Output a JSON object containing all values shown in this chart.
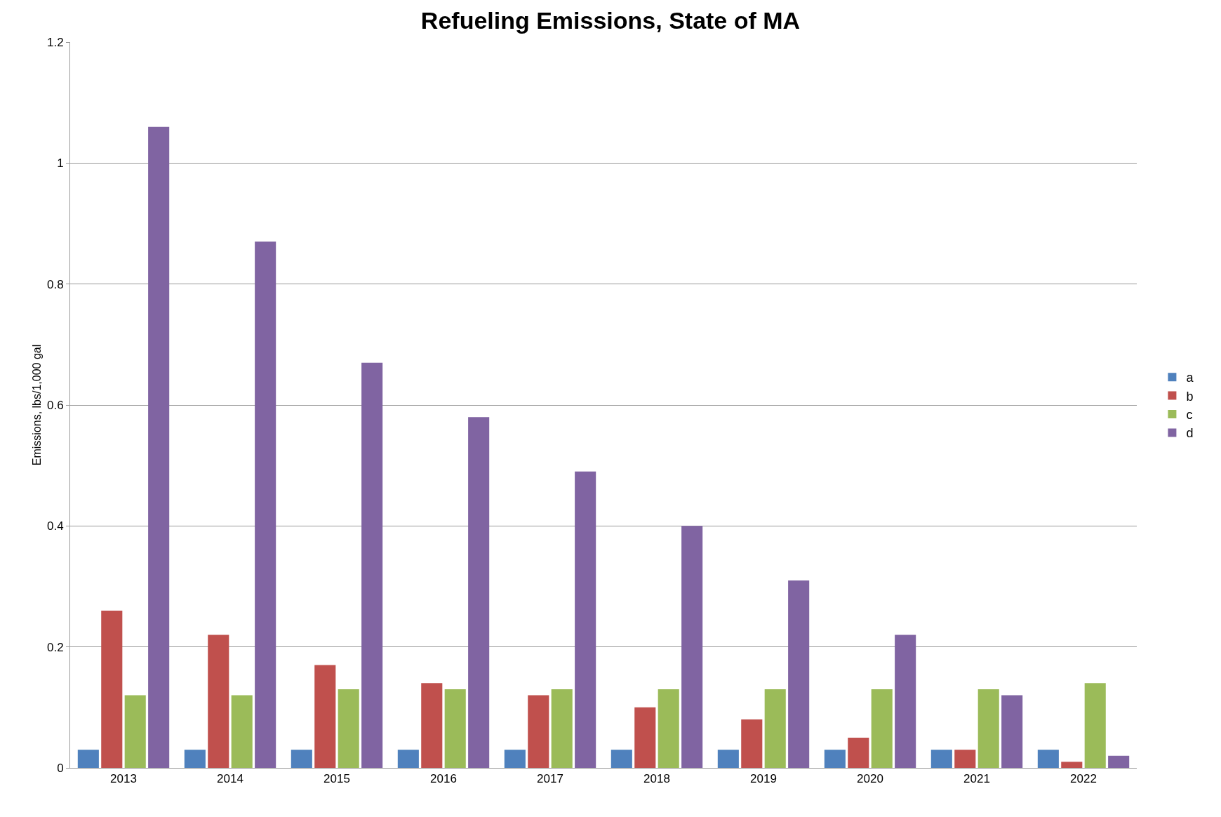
{
  "chart_data": {
    "type": "bar",
    "title": "Refueling Emissions, State of MA",
    "ylabel": "Emissions, lbs/1,000 gal",
    "categories": [
      "2013",
      "2014",
      "2015",
      "2016",
      "2017",
      "2018",
      "2019",
      "2020",
      "2021",
      "2022"
    ],
    "series": [
      {
        "name": "a",
        "color": "#4f81bd",
        "values": [
          0.03,
          0.03,
          0.03,
          0.03,
          0.03,
          0.03,
          0.03,
          0.03,
          0.03,
          0.03
        ]
      },
      {
        "name": "b",
        "color": "#c0504d",
        "values": [
          0.26,
          0.22,
          0.17,
          0.14,
          0.12,
          0.1,
          0.08,
          0.05,
          0.03,
          0.01
        ]
      },
      {
        "name": "c",
        "color": "#9bbb59",
        "values": [
          0.12,
          0.12,
          0.13,
          0.13,
          0.13,
          0.13,
          0.13,
          0.13,
          0.13,
          0.14
        ]
      },
      {
        "name": "d",
        "color": "#8064a2",
        "values": [
          1.06,
          0.87,
          0.67,
          0.58,
          0.49,
          0.4,
          0.31,
          0.22,
          0.12,
          0.02
        ]
      }
    ],
    "ylim": [
      0,
      1.2
    ],
    "yticks": [
      0,
      0.2,
      0.4,
      0.6,
      0.8,
      1,
      1.2
    ],
    "grid": "y",
    "legend": "right"
  }
}
